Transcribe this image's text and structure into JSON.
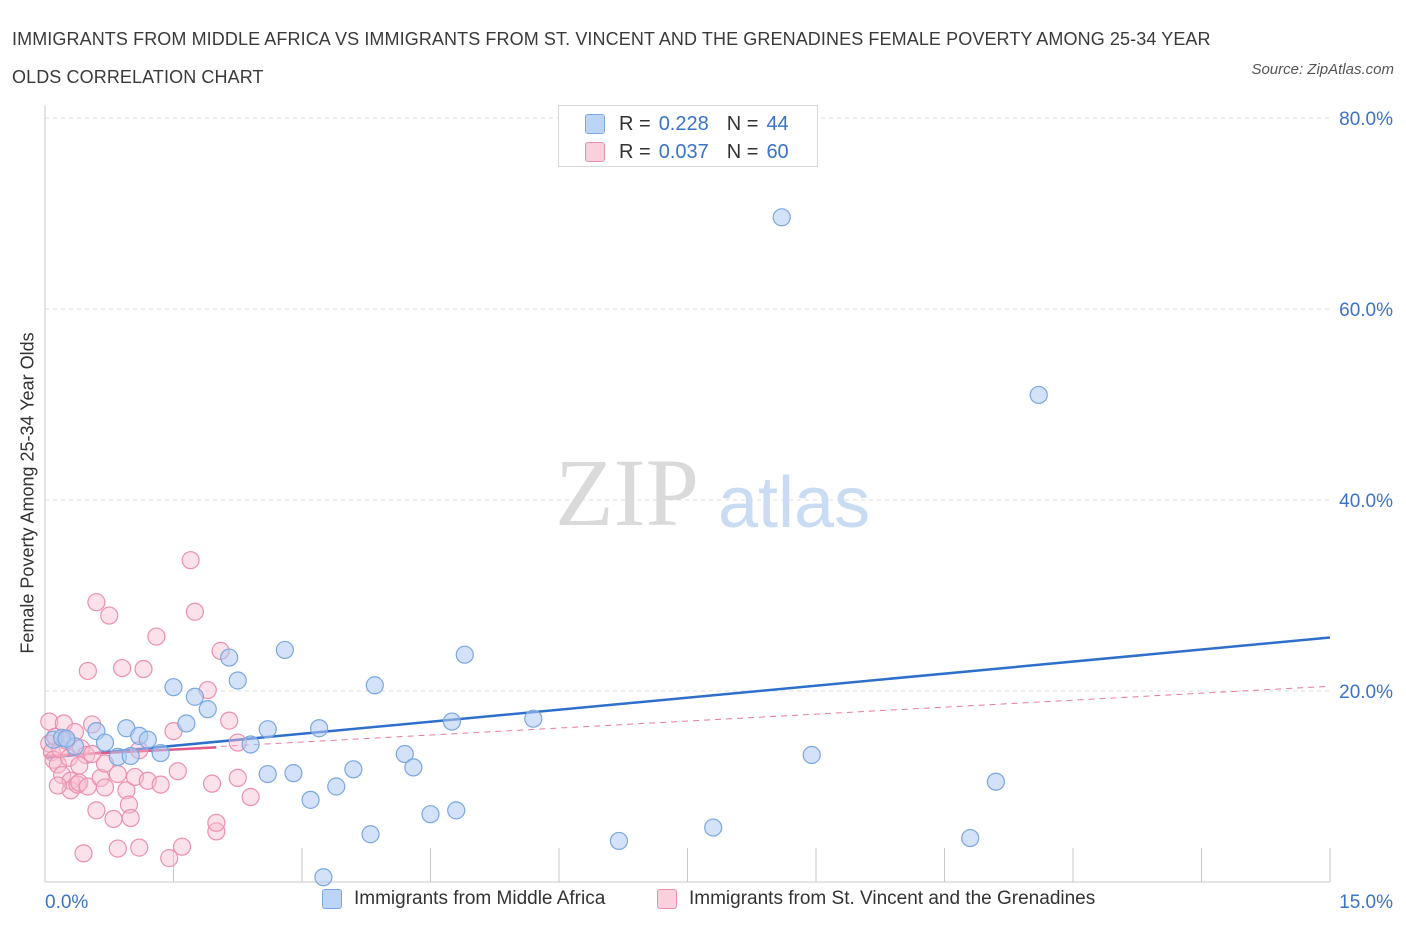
{
  "title": "IMMIGRANTS FROM MIDDLE AFRICA VS IMMIGRANTS FROM ST. VINCENT AND THE GRENADINES FEMALE POVERTY AMONG 25-34 YEAR OLDS CORRELATION CHART",
  "source": "Source: ZipAtlas.com",
  "watermark": {
    "zip": "ZIP",
    "atlas": "atlas"
  },
  "legend": {
    "r_label": "R =",
    "n_label": "N =",
    "series1": {
      "r": "0.228",
      "n": "44"
    },
    "series2": {
      "r": "0.037",
      "n": "60"
    }
  },
  "colors": {
    "blue_fill": "#aecbf2",
    "blue_stroke": "#7aa7e0",
    "blue_line": "#2f6fcc",
    "pink_fill": "#f7bfd0",
    "pink_stroke": "#ec8fae",
    "pink_line": "#e05a8a",
    "axis_text": "#3a73c8",
    "grid": "#dcdcdc"
  },
  "chart_data": {
    "type": "scatter",
    "title": "IMMIGRANTS FROM MIDDLE AFRICA VS IMMIGRANTS FROM ST. VINCENT AND THE GRENADINES FEMALE POVERTY AMONG 25-34 YEAR OLDS CORRELATION CHART",
    "xlabel": "",
    "ylabel": "Female Poverty Among 25-34 Year Olds",
    "xlim": [
      0,
      15
    ],
    "ylim": [
      0,
      80
    ],
    "x_tick_labels": [
      "0.0%",
      "15.0%"
    ],
    "y_ticks": [
      20,
      40,
      60,
      80
    ],
    "y_tick_labels": [
      "20.0%",
      "40.0%",
      "60.0%",
      "80.0%"
    ],
    "grid": true,
    "legend_position": "top-center",
    "series": [
      {
        "name": "Immigrants from Middle Africa",
        "color": "#aecbf2",
        "trend": {
          "x": [
            0,
            15
          ],
          "y": [
            13.0,
            25.6
          ],
          "style": "solid"
        },
        "points": [
          [
            0.1,
            14.9
          ],
          [
            0.2,
            15.1
          ],
          [
            0.35,
            14.2
          ],
          [
            0.6,
            15.8
          ],
          [
            0.7,
            14.6
          ],
          [
            0.85,
            13.1
          ],
          [
            0.95,
            16.1
          ],
          [
            1.1,
            15.3
          ],
          [
            1.2,
            14.9
          ],
          [
            1.35,
            13.5
          ],
          [
            1.5,
            20.4
          ],
          [
            1.75,
            19.4
          ],
          [
            1.65,
            16.6
          ],
          [
            1.9,
            18.1
          ],
          [
            2.15,
            23.5
          ],
          [
            2.25,
            21.1
          ],
          [
            2.4,
            14.4
          ],
          [
            2.6,
            11.3
          ],
          [
            2.6,
            16.0
          ],
          [
            2.8,
            24.3
          ],
          [
            2.9,
            11.4
          ],
          [
            3.1,
            8.6
          ],
          [
            3.2,
            16.1
          ],
          [
            3.4,
            10.0
          ],
          [
            3.6,
            11.8
          ],
          [
            3.8,
            5.0
          ],
          [
            3.85,
            20.6
          ],
          [
            4.2,
            13.4
          ],
          [
            4.3,
            12.0
          ],
          [
            4.5,
            7.1
          ],
          [
            4.75,
            16.8
          ],
          [
            4.8,
            7.5
          ],
          [
            4.9,
            23.8
          ],
          [
            5.7,
            17.1
          ],
          [
            6.7,
            4.3
          ],
          [
            7.8,
            5.7
          ],
          [
            8.6,
            69.6
          ],
          [
            8.95,
            13.3
          ],
          [
            11.6,
            51.0
          ],
          [
            11.1,
            10.5
          ],
          [
            10.8,
            4.6
          ],
          [
            3.25,
            0.5
          ],
          [
            0.25,
            15.0
          ],
          [
            1.0,
            13.2
          ]
        ]
      },
      {
        "name": "Immigrants from St. Vincent and the Grenadines",
        "color": "#f7bfd0",
        "trend": {
          "x": [
            0,
            2.0
          ],
          "y": [
            13.2,
            14.1
          ],
          "style": "solid"
        },
        "trend_extended": {
          "x": [
            0,
            15
          ],
          "y": [
            13.2,
            20.5
          ],
          "style": "dashed"
        },
        "points": [
          [
            0.05,
            16.8
          ],
          [
            0.05,
            14.5
          ],
          [
            0.08,
            13.6
          ],
          [
            0.1,
            12.8
          ],
          [
            0.12,
            15.2
          ],
          [
            0.15,
            12.3
          ],
          [
            0.18,
            13.9
          ],
          [
            0.2,
            11.2
          ],
          [
            0.22,
            16.6
          ],
          [
            0.25,
            14.8
          ],
          [
            0.28,
            13.0
          ],
          [
            0.3,
            10.6
          ],
          [
            0.3,
            9.6
          ],
          [
            0.35,
            15.7
          ],
          [
            0.38,
            10.2
          ],
          [
            0.4,
            10.4
          ],
          [
            0.42,
            14.0
          ],
          [
            0.45,
            3.0
          ],
          [
            0.48,
            13.3
          ],
          [
            0.5,
            22.1
          ],
          [
            0.5,
            10.0
          ],
          [
            0.55,
            16.5
          ],
          [
            0.6,
            7.5
          ],
          [
            0.6,
            29.3
          ],
          [
            0.65,
            10.9
          ],
          [
            0.7,
            12.4
          ],
          [
            0.75,
            27.9
          ],
          [
            0.8,
            6.6
          ],
          [
            0.85,
            11.3
          ],
          [
            0.85,
            3.5
          ],
          [
            0.9,
            22.4
          ],
          [
            0.95,
            9.6
          ],
          [
            0.98,
            8.1
          ],
          [
            1.0,
            6.7
          ],
          [
            1.05,
            11.0
          ],
          [
            1.1,
            3.6
          ],
          [
            1.15,
            22.3
          ],
          [
            1.2,
            10.6
          ],
          [
            1.3,
            25.7
          ],
          [
            1.35,
            10.2
          ],
          [
            1.45,
            2.5
          ],
          [
            1.5,
            15.8
          ],
          [
            1.55,
            11.6
          ],
          [
            1.6,
            3.7
          ],
          [
            1.7,
            33.7
          ],
          [
            1.75,
            28.3
          ],
          [
            1.9,
            20.1
          ],
          [
            1.95,
            10.3
          ],
          [
            2.0,
            5.3
          ],
          [
            2.0,
            6.2
          ],
          [
            2.05,
            24.2
          ],
          [
            2.15,
            16.9
          ],
          [
            2.25,
            14.6
          ],
          [
            2.25,
            10.9
          ],
          [
            2.4,
            8.9
          ],
          [
            0.7,
            9.9
          ],
          [
            0.15,
            10.1
          ],
          [
            0.4,
            12.2
          ],
          [
            0.55,
            13.4
          ],
          [
            1.1,
            13.8
          ]
        ]
      }
    ]
  }
}
